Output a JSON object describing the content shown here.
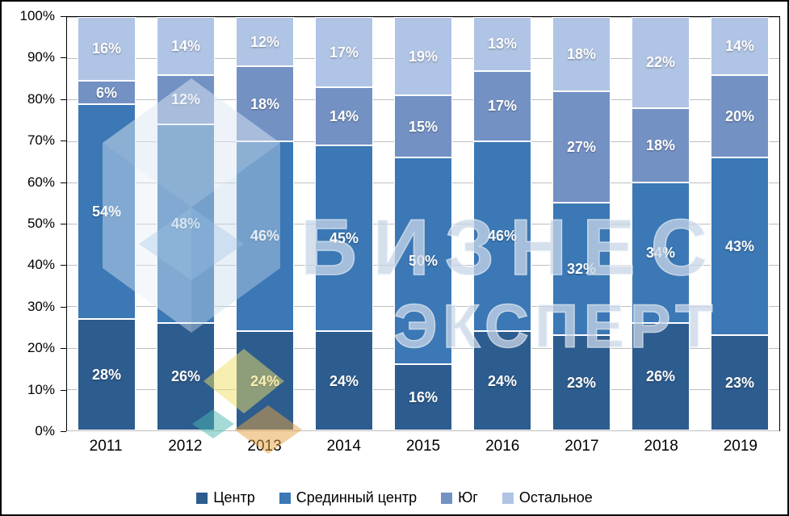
{
  "chart_data": {
    "type": "bar",
    "stacked": true,
    "percent": true,
    "title": "",
    "xlabel": "",
    "ylabel": "",
    "ylim": [
      0,
      100
    ],
    "grid": true,
    "legend_position": "bottom",
    "data_label_suffix": "%",
    "categories": [
      "2011",
      "2012",
      "2013",
      "2014",
      "2015",
      "2016",
      "2017",
      "2018",
      "2019"
    ],
    "series": [
      {
        "name": "Центр",
        "color": "#2d5c8f",
        "values": [
          28,
          26,
          24,
          24,
          16,
          24,
          23,
          26,
          23
        ]
      },
      {
        "name": "Срединный центр",
        "color": "#3b78b5",
        "values": [
          54,
          48,
          46,
          45,
          50,
          46,
          32,
          34,
          43
        ]
      },
      {
        "name": "Юг",
        "color": "#7491c4",
        "values": [
          6,
          12,
          18,
          14,
          15,
          17,
          27,
          18,
          20
        ]
      },
      {
        "name": "Остальное",
        "color": "#b0c4e5",
        "values": [
          16,
          14,
          12,
          17,
          19,
          13,
          18,
          22,
          14
        ]
      }
    ],
    "y_ticks": [
      "100%",
      "90%",
      "80%",
      "70%",
      "60%",
      "50%",
      "40%",
      "30%",
      "20%",
      "10%",
      "0%"
    ]
  },
  "watermark": {
    "line1": "БИЗНЕС",
    "line2": "ЭКСПЕРТ",
    "text_color": "#c9d6e8"
  }
}
